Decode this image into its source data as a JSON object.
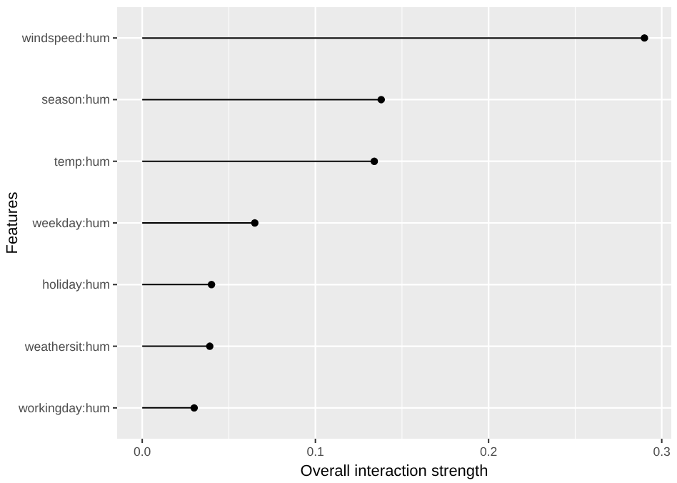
{
  "chart_data": {
    "type": "lollipop",
    "orientation": "horizontal",
    "xlabel": "Overall interaction strength",
    "ylabel": "Features",
    "categories": [
      "windspeed:hum",
      "season:hum",
      "temp:hum",
      "weekday:hum",
      "holiday:hum",
      "weathersit:hum",
      "workingday:hum"
    ],
    "values": [
      0.29,
      0.138,
      0.134,
      0.065,
      0.04,
      0.039,
      0.03
    ],
    "color": "#000000",
    "xlim": [
      -0.0145,
      0.3055
    ],
    "xticks": [
      {
        "value": 0,
        "label": "0.0"
      },
      0.1,
      0.2,
      0.3
    ],
    "grid": true,
    "marker": "circle"
  }
}
